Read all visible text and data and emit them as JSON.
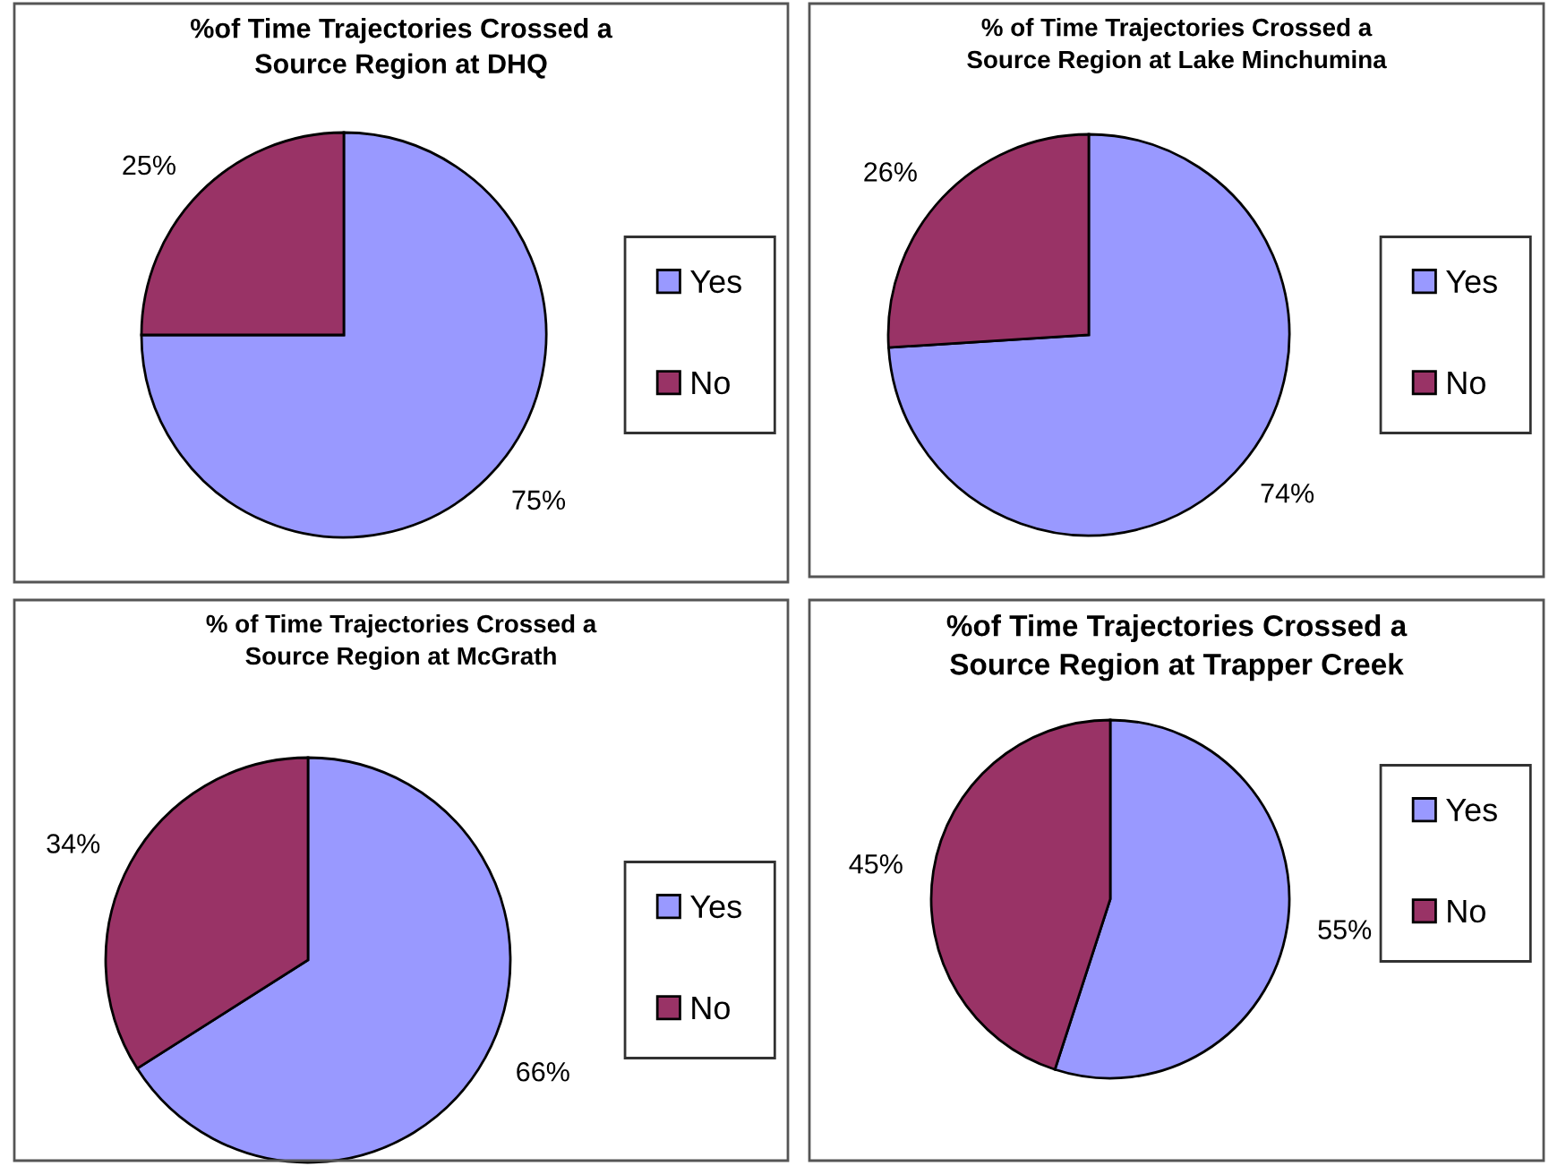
{
  "chart_data": [
    {
      "type": "pie",
      "title": "%of Time Trajectories Crossed a\nSource Region at DHQ",
      "categories": [
        "Yes",
        "No"
      ],
      "values": [
        75,
        25
      ],
      "colors": [
        "#9999ff",
        "#993366"
      ],
      "value_labels": [
        "75%",
        "25%"
      ],
      "legend": "right"
    },
    {
      "type": "pie",
      "title": "% of Time Trajectories Crossed a\nSource Region at Lake Minchumina",
      "categories": [
        "Yes",
        "No"
      ],
      "values": [
        74,
        26
      ],
      "colors": [
        "#9999ff",
        "#993366"
      ],
      "value_labels": [
        "74%",
        "26%"
      ],
      "legend": "right"
    },
    {
      "type": "pie",
      "title": "% of Time Trajectories Crossed a\nSource Region at McGrath",
      "categories": [
        "Yes",
        "No"
      ],
      "values": [
        66,
        34
      ],
      "colors": [
        "#9999ff",
        "#993366"
      ],
      "value_labels": [
        "66%",
        "34%"
      ],
      "legend": "right"
    },
    {
      "type": "pie",
      "title": "%of Time Trajectories Crossed a\nSource Region at Trapper Creek",
      "categories": [
        "Yes",
        "No"
      ],
      "values": [
        55,
        45
      ],
      "colors": [
        "#9999ff",
        "#993366"
      ],
      "value_labels": [
        "55%",
        "45%"
      ],
      "legend": "right"
    }
  ]
}
